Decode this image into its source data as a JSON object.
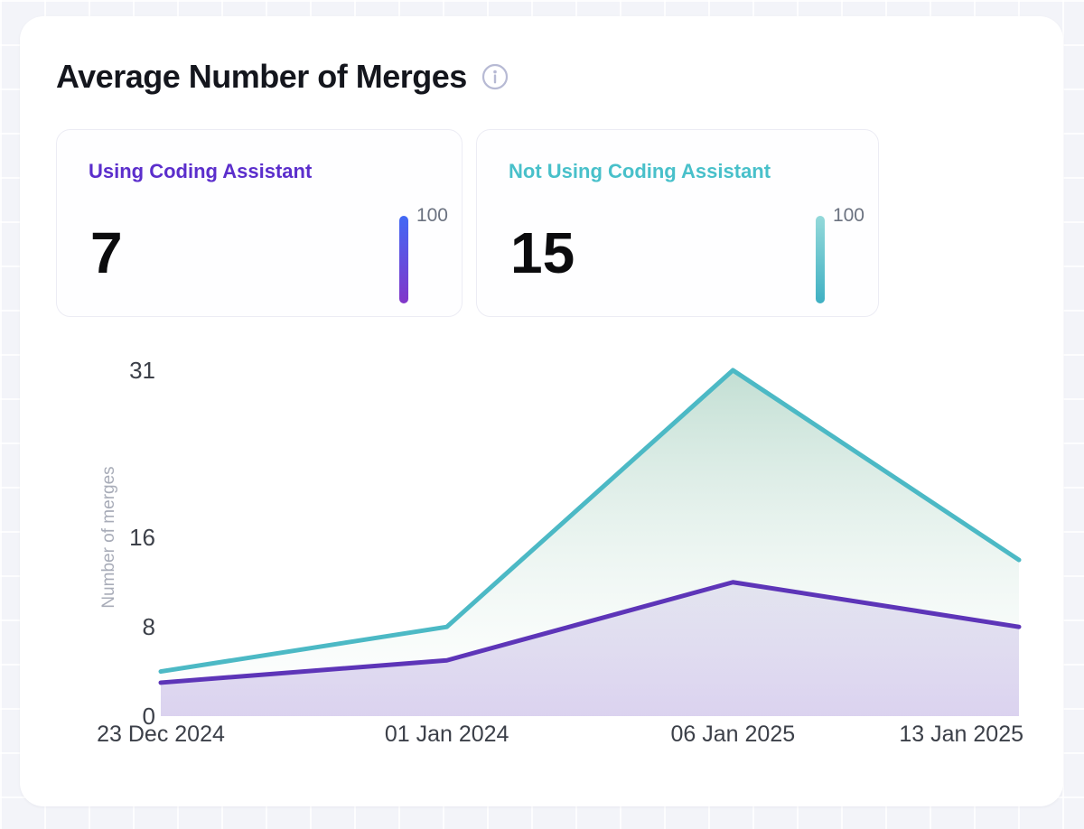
{
  "header": {
    "title": "Average Number of Merges",
    "info_icon": "info-icon",
    "info_icon_color": "#b7bad4"
  },
  "cards": [
    {
      "key": "using",
      "label": "Using Coding Assistant",
      "value": "7",
      "gauge_max": "100",
      "accent_color": "#5b2ecc",
      "bar_gradient_top": "#4269f5",
      "bar_gradient_bottom": "#8236c9"
    },
    {
      "key": "not-using",
      "label": "Not Using Coding Assistant",
      "value": "15",
      "gauge_max": "100",
      "accent_color": "#48c0ca",
      "bar_gradient_top": "#94d9da",
      "bar_gradient_bottom": "#3fb0c3"
    }
  ],
  "chart_data": {
    "type": "area",
    "title": "Average Number of Merges",
    "x": [
      "23 Dec 2024",
      "01 Jan 2024",
      "06 Jan 2025",
      "13 Jan 2025"
    ],
    "series": [
      {
        "key": "not-using-coding-assistant",
        "name": "Not Using Coding Assistant",
        "values": [
          4,
          8,
          31,
          14
        ],
        "line_color": "#4cb9c5",
        "fill_top": "rgba(96,170,140,0.38)",
        "fill_bottom": "rgba(246,252,249,0.10)"
      },
      {
        "key": "using-coding-assistant",
        "name": "Using Coding Assistant",
        "values": [
          3,
          5,
          12,
          8
        ],
        "line_color": "#5d35b8",
        "fill_top": "rgba(93,53,184,0.10)",
        "fill_bottom": "rgba(93,53,184,0.22)"
      }
    ],
    "xlabel": "",
    "ylabel": "Number of merges",
    "y_ticks": [
      0,
      8,
      16,
      31
    ],
    "ylim": [
      0,
      31
    ],
    "grid": false,
    "legend_position": "none"
  }
}
